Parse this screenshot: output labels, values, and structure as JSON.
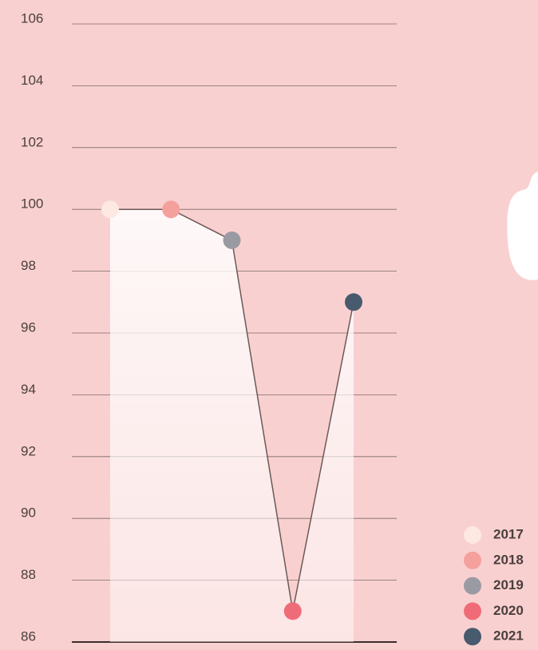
{
  "chart_data": {
    "type": "line",
    "categories": [
      "2017",
      "2018",
      "2019",
      "2020",
      "2021"
    ],
    "values": [
      100,
      100,
      99,
      87,
      97
    ],
    "colors": [
      "#fde8e2",
      "#f4a09c",
      "#9a9aa3",
      "#f06b78",
      "#475a6e"
    ],
    "line_color": "#6b5a56",
    "ylim": [
      86,
      106
    ],
    "yticks": [
      86,
      88,
      90,
      92,
      94,
      96,
      98,
      100,
      102,
      104,
      106
    ],
    "grid": true,
    "legend": "bottom-right"
  }
}
